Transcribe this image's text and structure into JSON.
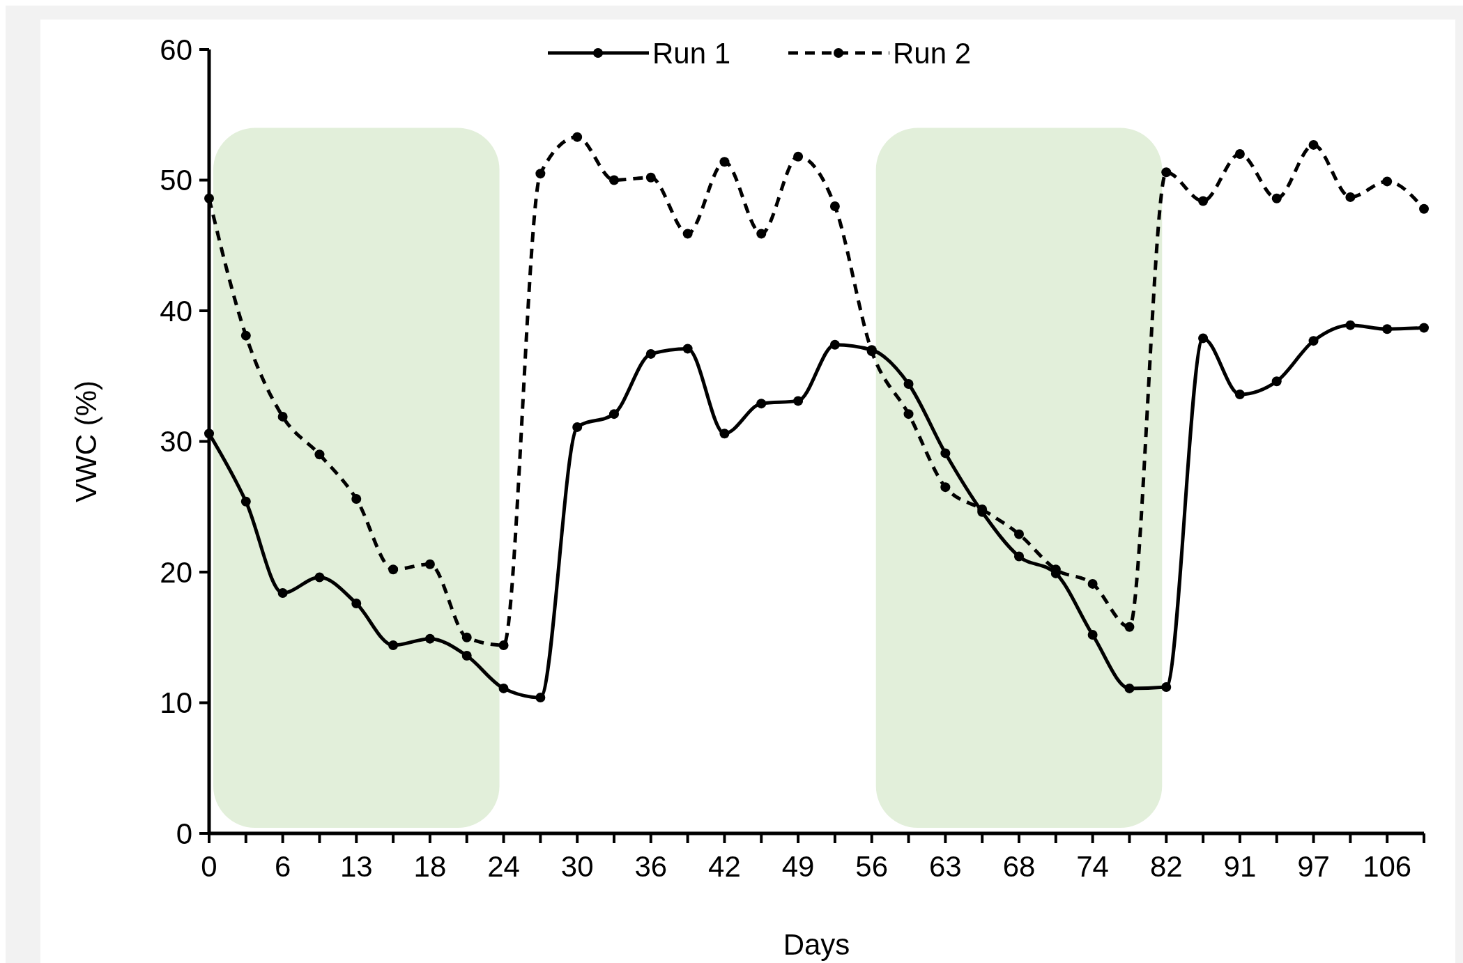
{
  "chart_data": {
    "type": "line",
    "xlabel": "Days",
    "ylabel": "VWC (%)",
    "categories": [
      "0",
      null,
      "6",
      null,
      "13",
      null,
      "18",
      null,
      "24",
      null,
      "30",
      null,
      "36",
      null,
      "42",
      null,
      "49",
      null,
      "56",
      null,
      "63",
      null,
      "68",
      null,
      "74",
      null,
      "82",
      null,
      "91",
      null,
      "97",
      null,
      "106",
      null
    ],
    "series": [
      {
        "name": "Run 1",
        "color": "#000000",
        "line_style": "solid",
        "values": [
          30.6,
          25.4,
          18.4,
          19.6,
          17.6,
          14.4,
          14.9,
          13.6,
          11.1,
          10.4,
          31.1,
          32.1,
          36.7,
          37.1,
          30.6,
          32.9,
          33.1,
          37.4,
          37.0,
          34.4,
          29.1,
          24.6,
          21.2,
          19.9,
          15.2,
          11.1,
          11.2,
          37.9,
          33.6,
          34.6,
          37.7,
          38.9,
          38.6,
          38.7
        ]
      },
      {
        "name": "Run 2",
        "color": "#000000",
        "line_style": "dashed",
        "values": [
          48.6,
          38.1,
          31.9,
          29.0,
          25.6,
          20.2,
          20.6,
          15.0,
          14.4,
          50.5,
          53.3,
          50.0,
          50.2,
          45.9,
          51.4,
          45.9,
          51.8,
          48.0,
          36.9,
          32.1,
          26.5,
          24.8,
          22.9,
          20.2,
          19.1,
          15.8,
          50.6,
          48.4,
          52.0,
          48.6,
          52.7,
          48.7,
          49.9,
          47.8
        ]
      }
    ],
    "ylim": [
      0,
      60
    ],
    "yticks": [
      0,
      10,
      20,
      30,
      40,
      50,
      60
    ],
    "bands": [
      {
        "axis": "x",
        "from": "0",
        "to": "24",
        "color": "#e2efda"
      },
      {
        "axis": "x",
        "from": "56",
        "to": "82",
        "color": "#e2efda"
      }
    ],
    "marker": "circle",
    "grid": false,
    "legend": "top"
  }
}
